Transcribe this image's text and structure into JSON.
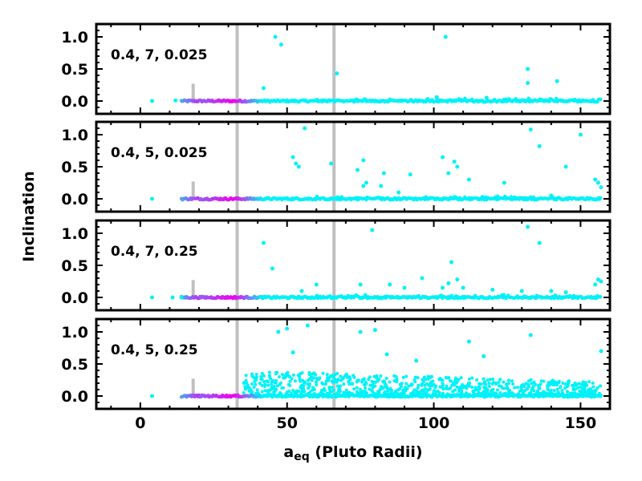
{
  "figure": {
    "ylabel": "Inclination",
    "xlabel_main": "a",
    "xlabel_sub": "eq",
    "xlabel_rest": " (Pluto Radii)",
    "xlim": [
      -15,
      160
    ],
    "ylim": [
      -0.2,
      1.2
    ],
    "x_ticks": [
      "0",
      "50",
      "100",
      "150"
    ],
    "y_ticks": [
      "0.0",
      "0.5",
      "1.0"
    ],
    "colors": {
      "points": "#00f2f8",
      "points_mid": "#f000f0",
      "marker_lines": "#c0c0c0",
      "frame": "#000000"
    }
  },
  "chart_data": [
    {
      "type": "scatter",
      "label": "0.4, 7, 0.025",
      "marker_lines": {
        "short": 18,
        "tall": [
          33,
          66
        ]
      },
      "band": {
        "start": 14,
        "end": 157
      },
      "outliers": [
        [
          4,
          0.0
        ],
        [
          12,
          0.01
        ],
        [
          46,
          1.0
        ],
        [
          48,
          0.88
        ],
        [
          42,
          0.2
        ],
        [
          67,
          0.43
        ],
        [
          104,
          1.0
        ],
        [
          132,
          0.5
        ],
        [
          132,
          0.28
        ],
        [
          142,
          0.31
        ],
        [
          118,
          0.05
        ],
        [
          128,
          0.03
        ],
        [
          148,
          0.02
        ],
        [
          101,
          0.06
        ]
      ]
    },
    {
      "type": "scatter",
      "label": "0.4, 5, 0.025",
      "marker_lines": {
        "short": 18,
        "tall": [
          33,
          66
        ]
      },
      "band": {
        "start": 14,
        "end": 157
      },
      "outliers": [
        [
          4,
          0.0
        ],
        [
          56,
          1.1
        ],
        [
          52,
          0.65
        ],
        [
          53,
          0.55
        ],
        [
          54,
          0.5
        ],
        [
          65,
          0.55
        ],
        [
          76,
          0.6
        ],
        [
          74,
          0.45
        ],
        [
          77,
          0.25
        ],
        [
          76,
          0.2
        ],
        [
          83,
          0.4
        ],
        [
          82,
          0.2
        ],
        [
          88,
          0.1
        ],
        [
          92,
          0.38
        ],
        [
          103,
          0.65
        ],
        [
          107,
          0.58
        ],
        [
          108,
          0.5
        ],
        [
          105,
          0.4
        ],
        [
          112,
          0.3
        ],
        [
          124,
          0.25
        ],
        [
          133,
          1.08
        ],
        [
          136,
          0.82
        ],
        [
          145,
          0.5
        ],
        [
          150,
          1.0
        ],
        [
          155,
          0.3
        ],
        [
          156,
          0.25
        ],
        [
          157,
          0.18
        ],
        [
          134,
          0.02
        ],
        [
          140,
          0.05
        ]
      ]
    },
    {
      "type": "scatter",
      "label": "0.4, 7, 0.25",
      "marker_lines": {
        "short": 18,
        "tall": [
          33,
          66
        ]
      },
      "band": {
        "start": 14,
        "end": 157
      },
      "outliers": [
        [
          4,
          0.0
        ],
        [
          11,
          0.0
        ],
        [
          14,
          0.0
        ],
        [
          42,
          0.85
        ],
        [
          45,
          0.45
        ],
        [
          79,
          1.05
        ],
        [
          132,
          1.1
        ],
        [
          136,
          0.85
        ],
        [
          96,
          0.3
        ],
        [
          105,
          0.22
        ],
        [
          106,
          0.55
        ],
        [
          108,
          0.28
        ],
        [
          103,
          0.15
        ],
        [
          110,
          0.15
        ],
        [
          60,
          0.2
        ],
        [
          55,
          0.1
        ],
        [
          75,
          0.2
        ],
        [
          85,
          0.2
        ],
        [
          90,
          0.15
        ],
        [
          120,
          0.12
        ],
        [
          130,
          0.1
        ],
        [
          140,
          0.1
        ],
        [
          145,
          0.08
        ],
        [
          155,
          0.2
        ],
        [
          156,
          0.28
        ],
        [
          157,
          0.25
        ]
      ]
    },
    {
      "type": "scatter",
      "label": "0.4, 5, 0.25",
      "marker_lines": {
        "short": 18,
        "tall": [
          33,
          66
        ]
      },
      "band": {
        "start": 14,
        "end": 157
      },
      "cloud": {
        "start": 35,
        "end": 157,
        "max": 0.4
      },
      "outliers": [
        [
          4,
          0.0
        ],
        [
          47,
          1.0
        ],
        [
          50,
          1.05
        ],
        [
          52,
          0.68
        ],
        [
          57,
          1.1
        ],
        [
          75,
          1.0
        ],
        [
          80,
          1.03
        ],
        [
          84,
          0.65
        ],
        [
          94,
          0.55
        ],
        [
          112,
          0.85
        ],
        [
          117,
          0.62
        ],
        [
          133,
          0.95
        ],
        [
          157,
          0.7
        ]
      ]
    }
  ]
}
